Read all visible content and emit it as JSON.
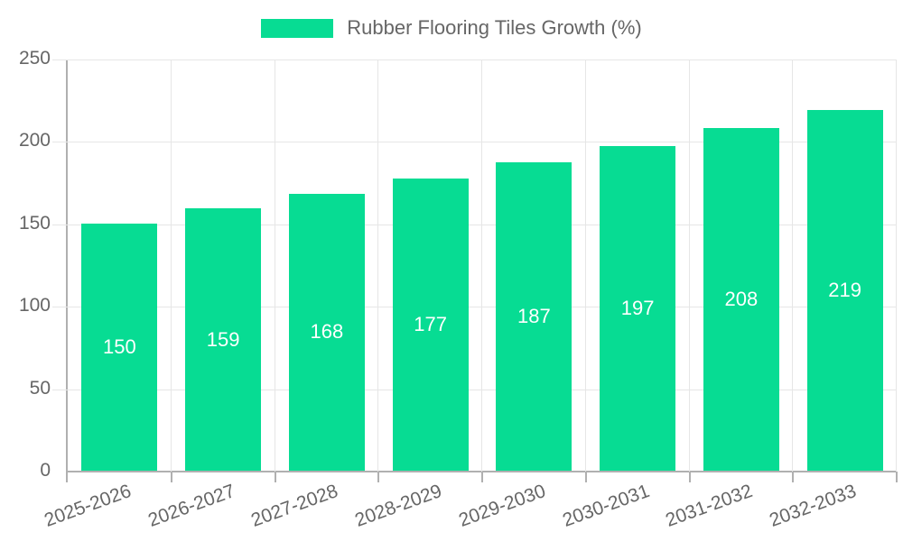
{
  "chart_data": {
    "type": "bar",
    "legend_label": "Rubber Flooring Tiles Growth (%)",
    "legend_position": "top-center",
    "categories": [
      "2025-2026",
      "2026-2027",
      "2027-2028",
      "2028-2029",
      "2029-2030",
      "2030-2031",
      "2031-2032",
      "2032-2033"
    ],
    "values": [
      150,
      159,
      168,
      177,
      187,
      197,
      208,
      219
    ],
    "xlabel": "",
    "ylabel": "",
    "ylim": [
      0,
      250
    ],
    "yticks": [
      0,
      50,
      100,
      150,
      200,
      250
    ],
    "grid": true,
    "bar_color": "#07DC93",
    "value_label_color": "#ffffff",
    "axis_text_color": "#666666",
    "gridline_color": "#e6e6e6",
    "axis_line_color": "#b0b0b0"
  }
}
